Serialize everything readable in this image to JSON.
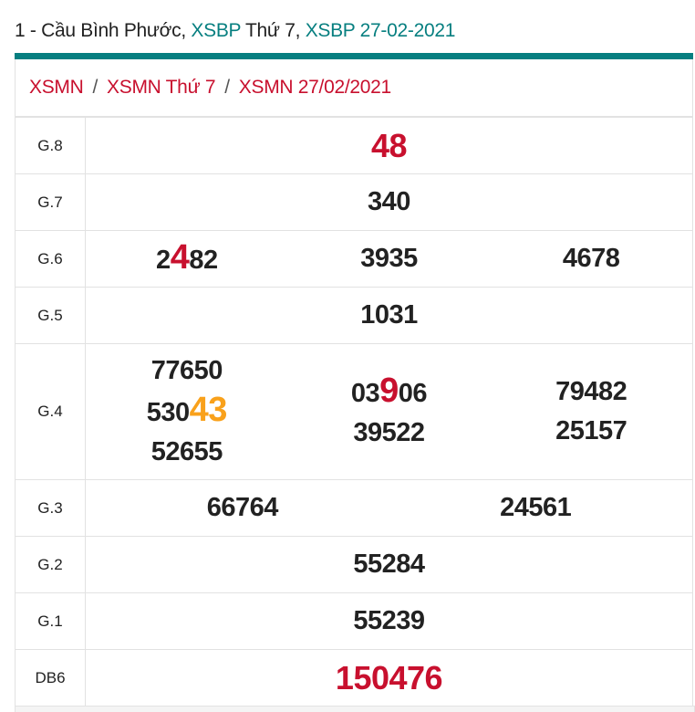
{
  "title": {
    "prefix": "1 - Cầu Bình Phước, ",
    "link1": "XSBP",
    "mid": " Thứ 7, ",
    "link2": "XSBP 27-02-2021"
  },
  "breadcrumb": {
    "items": [
      "XSMN",
      "XSMN Thứ 7",
      "XSMN 27/02/2021"
    ],
    "separator": "/"
  },
  "colors": {
    "teal": "#077f80",
    "red": "#c8102e",
    "orange": "#f9a11b"
  },
  "rows": [
    {
      "label": "G.8",
      "layout": "single",
      "style": "big-red",
      "cols": [
        [
          {
            "pre": "48",
            "hl": "",
            "post": ""
          }
        ]
      ]
    },
    {
      "label": "G.7",
      "layout": "single",
      "cols": [
        [
          {
            "pre": "340",
            "hl": "",
            "post": ""
          }
        ]
      ]
    },
    {
      "label": "G.6",
      "layout": "three",
      "cols": [
        [
          {
            "pre": "2",
            "hl": "4",
            "post": "82",
            "hl_color": "red"
          }
        ],
        [
          {
            "pre": "3935",
            "hl": "",
            "post": ""
          }
        ],
        [
          {
            "pre": "4678",
            "hl": "",
            "post": ""
          }
        ]
      ]
    },
    {
      "label": "G.5",
      "layout": "single",
      "cols": [
        [
          {
            "pre": "1031",
            "hl": "",
            "post": ""
          }
        ]
      ]
    },
    {
      "label": "G.4",
      "layout": "three",
      "cols": [
        [
          {
            "pre": "77650",
            "hl": "",
            "post": ""
          },
          {
            "pre": "530",
            "hl": "43",
            "post": "",
            "hl_color": "orange"
          },
          {
            "pre": "52655",
            "hl": "",
            "post": ""
          }
        ],
        [
          {
            "pre": "03",
            "hl": "9",
            "post": "06",
            "hl_color": "red"
          },
          {
            "pre": "39522",
            "hl": "",
            "post": ""
          }
        ],
        [
          {
            "pre": "79482",
            "hl": "",
            "post": ""
          },
          {
            "pre": "25157",
            "hl": "",
            "post": ""
          }
        ]
      ]
    },
    {
      "label": "G.3",
      "layout": "two",
      "cols": [
        [
          {
            "pre": "66764",
            "hl": "",
            "post": ""
          }
        ],
        [
          {
            "pre": "24561",
            "hl": "",
            "post": ""
          }
        ]
      ]
    },
    {
      "label": "G.2",
      "layout": "single",
      "cols": [
        [
          {
            "pre": "55284",
            "hl": "",
            "post": ""
          }
        ]
      ]
    },
    {
      "label": "G.1",
      "layout": "single",
      "cols": [
        [
          {
            "pre": "55239",
            "hl": "",
            "post": ""
          }
        ]
      ]
    },
    {
      "label": "DB6",
      "layout": "single",
      "style": "big-red",
      "cols": [
        [
          {
            "pre": "150476",
            "hl": "",
            "post": ""
          }
        ]
      ]
    }
  ]
}
